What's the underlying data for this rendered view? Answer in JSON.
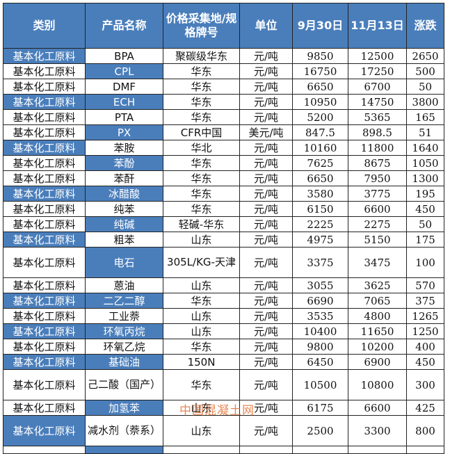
{
  "headers": [
    "类别",
    "产品名称",
    "价格采集地/规格牌号",
    "单位",
    "9月30日",
    "11月13日",
    "涨跌"
  ],
  "accent": "#4a7ebb",
  "rows": [
    {
      "cat": "基本化工原料",
      "prod": "BPA",
      "loc": "聚碳级华东",
      "unit": "元/吨",
      "d1": "9850",
      "d2": "12500",
      "chg": "2650"
    },
    {
      "cat": "基本化工原料",
      "prod": "CPL",
      "loc": "华东",
      "unit": "元/吨",
      "d1": "16750",
      "d2": "17250",
      "chg": "500"
    },
    {
      "cat": "基本化工原料",
      "prod": "DMF",
      "loc": "华东",
      "unit": "元/吨",
      "d1": "6650",
      "d2": "6700",
      "chg": "50"
    },
    {
      "cat": "基本化工原料",
      "prod": "ECH",
      "loc": "华东",
      "unit": "元/吨",
      "d1": "10950",
      "d2": "14750",
      "chg": "3800"
    },
    {
      "cat": "基本化工原料",
      "prod": "PTA",
      "loc": "华东",
      "unit": "元/吨",
      "d1": "5200",
      "d2": "5365",
      "chg": "165"
    },
    {
      "cat": "基本化工原料",
      "prod": "PX",
      "loc": "CFR中国",
      "unit": "美元/吨",
      "d1": "847.5",
      "d2": "898.5",
      "chg": "51"
    },
    {
      "cat": "基本化工原料",
      "prod": "苯胺",
      "loc": "华北",
      "unit": "元/吨",
      "d1": "10160",
      "d2": "11800",
      "chg": "1640"
    },
    {
      "cat": "基本化工原料",
      "prod": "苯酚",
      "loc": "华东",
      "unit": "元/吨",
      "d1": "7625",
      "d2": "8675",
      "chg": "1050"
    },
    {
      "cat": "基本化工原料",
      "prod": "苯酐",
      "loc": "华东",
      "unit": "元/吨",
      "d1": "6650",
      "d2": "7950",
      "chg": "1300"
    },
    {
      "cat": "基本化工原料",
      "prod": "冰醋酸",
      "loc": "华东",
      "unit": "元/吨",
      "d1": "3580",
      "d2": "3775",
      "chg": "195"
    },
    {
      "cat": "基本化工原料",
      "prod": "纯苯",
      "loc": "华东",
      "unit": "元/吨",
      "d1": "6150",
      "d2": "6600",
      "chg": "450"
    },
    {
      "cat": "基本化工原料",
      "prod": "纯碱",
      "loc": "轻碱-华东",
      "unit": "元/吨",
      "d1": "2225",
      "d2": "2275",
      "chg": "50"
    },
    {
      "cat": "基本化工原料",
      "prod": "粗苯",
      "loc": "山东",
      "unit": "元/吨",
      "d1": "4975",
      "d2": "5150",
      "chg": "175"
    },
    {
      "cat": "基本化工原料",
      "prod": "电石",
      "loc": "305L/KG-天津",
      "unit": "元/吨",
      "d1": "3375",
      "d2": "3475",
      "chg": "100"
    },
    {
      "cat": "基本化工原料",
      "prod": "蒽油",
      "loc": "山东",
      "unit": "元/吨",
      "d1": "3055",
      "d2": "3625",
      "chg": "570"
    },
    {
      "cat": "基本化工原料",
      "prod": "二乙二醇",
      "loc": "华东",
      "unit": "元/吨",
      "d1": "6690",
      "d2": "7065",
      "chg": "375"
    },
    {
      "cat": "基本化工原料",
      "prod": "工业萘",
      "loc": "山东",
      "unit": "元/吨",
      "d1": "3535",
      "d2": "4800",
      "chg": "1265"
    },
    {
      "cat": "基本化工原料",
      "prod": "环氧丙烷",
      "loc": "山东",
      "unit": "元/吨",
      "d1": "10400",
      "d2": "11650",
      "chg": "1250"
    },
    {
      "cat": "基本化工原料",
      "prod": "环氧乙烷",
      "loc": "华东",
      "unit": "元/吨",
      "d1": "9800",
      "d2": "10200",
      "chg": "400"
    },
    {
      "cat": "基本化工原料",
      "prod": "基础油",
      "loc": "150N",
      "unit": "元/吨",
      "d1": "6450",
      "d2": "6900",
      "chg": "450"
    },
    {
      "cat": "基本化工原料",
      "prod": "己二酸（国产）",
      "loc": "华东",
      "unit": "元/吨",
      "d1": "10500",
      "d2": "10800",
      "chg": "300"
    },
    {
      "cat": "基本化工原料",
      "prod": "加氢苯",
      "loc": "山东",
      "unit": "元/吨",
      "d1": "6175",
      "d2": "6600",
      "chg": "425"
    },
    {
      "cat": "基本化工原料",
      "prod": "减水剂（萘系）",
      "loc": "山东",
      "unit": "元/吨",
      "d1": "2500",
      "d2": "3300",
      "chg": "800"
    }
  ],
  "watermark": "中国混凝土网"
}
